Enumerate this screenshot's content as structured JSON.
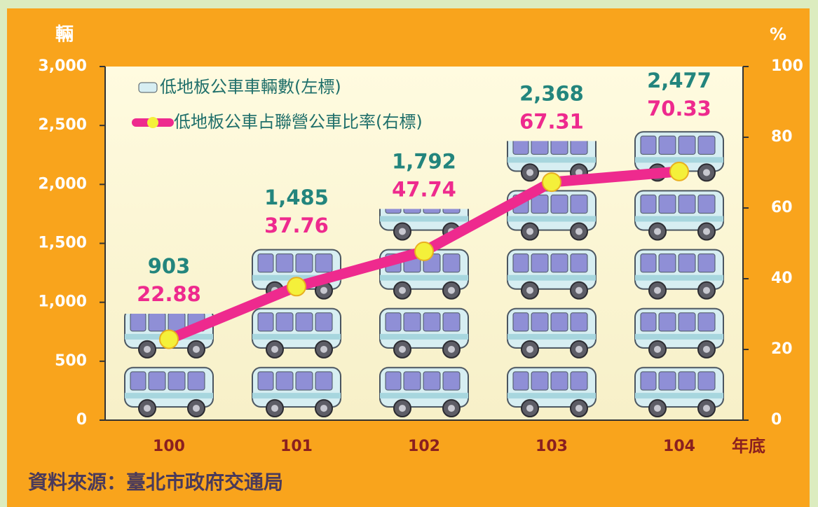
{
  "chart_data": {
    "type": "bar",
    "y_label": "輛",
    "y2_label": "%",
    "x_label": "年底",
    "source": "資料來源：臺北市政府交通局",
    "categories": [
      "100",
      "101",
      "102",
      "103",
      "104"
    ],
    "series": [
      {
        "name": "低地板公車車輛數(左標)",
        "type": "bar",
        "color": "#23857d",
        "values": [
          903,
          1485,
          1792,
          2368,
          2477
        ],
        "value_labels": [
          "903",
          "1,485",
          "1,792",
          "2,368",
          "2,477"
        ]
      },
      {
        "name": "低地板公車占聯營公車比率(右標)",
        "type": "line",
        "axis": "y2",
        "color": "#ee2a8e",
        "marker_color": "#f4f03a",
        "values": [
          22.88,
          37.76,
          47.74,
          67.31,
          70.33
        ]
      }
    ],
    "ylim": [
      0,
      3000
    ],
    "yticks": [
      0,
      {
        "value": 500,
        "label": "500"
      },
      {
        "value": 1000,
        "label": "1,000"
      },
      {
        "value": 1500,
        "label": "1,500"
      },
      {
        "value": 2000,
        "label": "2,000"
      },
      {
        "value": 2500,
        "label": "2,500"
      },
      {
        "value": 3000,
        "label": "3,000"
      }
    ],
    "y2lim": [
      0,
      100
    ],
    "y2ticks": [
      0,
      20,
      40,
      60,
      80,
      100
    ],
    "legend": "upper left"
  }
}
